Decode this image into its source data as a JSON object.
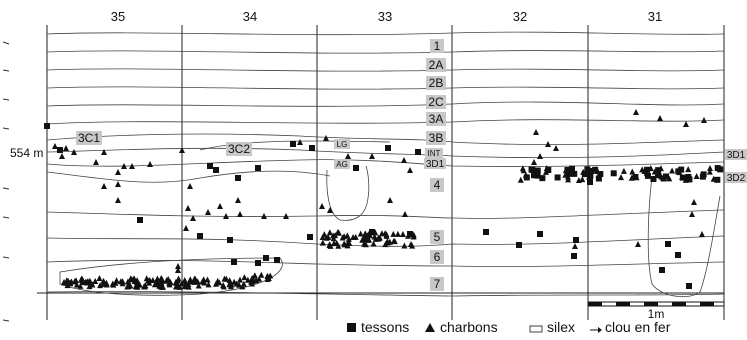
{
  "columns": [
    "35",
    "34",
    "33",
    "32",
    "31"
  ],
  "elevation_label": "554 m",
  "layers": [
    "1",
    "2A",
    "2B",
    "2C",
    "3A",
    "3B",
    "3D1",
    "4",
    "5",
    "6",
    "7"
  ],
  "side_labels": [
    "3C1",
    "3C2",
    "3D1",
    "3D2"
  ],
  "small_labels": [
    "LG",
    "INT",
    "AG"
  ],
  "scale_label": "1m",
  "legend": {
    "tessons": "tessons",
    "charbons": "charbons",
    "silex": "silex",
    "clou": "clou en fer"
  },
  "colors": {
    "ink": "#111111",
    "label_box": "#c8c8c8"
  }
}
